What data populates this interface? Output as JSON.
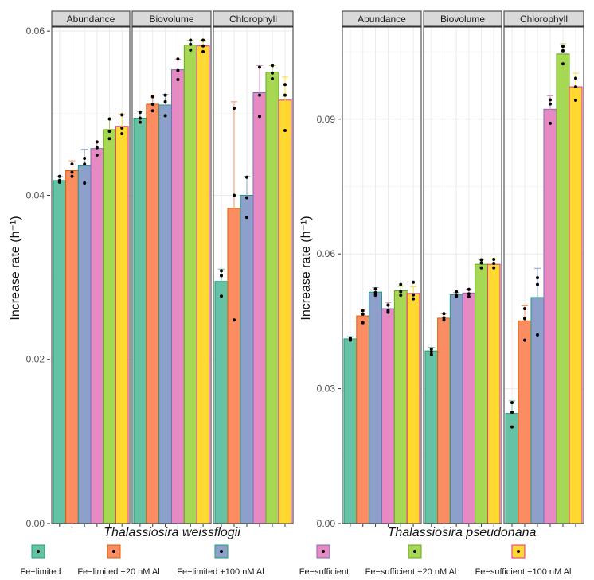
{
  "figure": {
    "legend": [
      {
        "label": "Fe−limited",
        "fill": "#66C2A5",
        "border": "#1B9E77"
      },
      {
        "label": "Fe−limited +20 nM Al",
        "fill": "#FC8D62",
        "border": "#D95F02"
      },
      {
        "label": "Fe−limited +100 nM Al",
        "fill": "#8DA0CB",
        "border": "#1B9E77"
      },
      {
        "label": "Fe−sufficient",
        "fill": "#E78AC3",
        "border": "#7570B3"
      },
      {
        "label": "Fe−sufficient +20 nM Al",
        "fill": "#A6D854",
        "border": "#66A61E"
      },
      {
        "label": "Fe−sufficient +100 nM Al",
        "fill": "#FFD92F",
        "border": "#E7298A"
      }
    ]
  },
  "chart_data": [
    {
      "type": "bar",
      "xlabel": "Thalassiosira weissflogii",
      "ylabel": "Increase rate (h⁻¹)",
      "ylim": [
        0,
        0.0605
      ],
      "yticks": [
        "0.00",
        "0.02",
        "0.04",
        "0.06"
      ],
      "ytick_values": [
        0,
        0.02,
        0.04,
        0.06
      ],
      "grid": true,
      "facets": [
        {
          "name": "Abundance",
          "values": [
            0.0418,
            0.043,
            0.0436,
            0.0457,
            0.048,
            0.0484
          ],
          "errors": [
            0.0005,
            0.0012,
            0.002,
            0.0008,
            0.0013,
            0.0015
          ],
          "points": [
            [
              0.0416,
              0.0418,
              0.0423
            ],
            [
              0.0423,
              0.0428,
              0.0438
            ],
            [
              0.0415,
              0.0438,
              0.0445
            ],
            [
              0.0449,
              0.0458,
              0.0465
            ],
            [
              0.0469,
              0.0478,
              0.0493
            ],
            [
              0.0475,
              0.0482,
              0.0498
            ]
          ]
        },
        {
          "name": "Biovolume",
          "values": [
            0.0494,
            0.0511,
            0.051,
            0.0553,
            0.0583,
            0.0582
          ],
          "errors": [
            0.0008,
            0.0011,
            0.0013,
            0.0013,
            0.0006,
            0.0007
          ],
          "points": [
            [
              0.0489,
              0.0494,
              0.0501
            ],
            [
              0.0503,
              0.0511,
              0.052
            ],
            [
              0.0497,
              0.0514,
              0.0522
            ],
            [
              0.0541,
              0.0552,
              0.0566
            ],
            [
              0.0577,
              0.0584,
              0.0589
            ],
            [
              0.0575,
              0.0582,
              0.0589
            ]
          ]
        },
        {
          "name": "Chlorophyll",
          "values": [
            0.0295,
            0.0384,
            0.04,
            0.0525,
            0.055,
            0.0516
          ],
          "errors": [
            0.0015,
            0.013,
            0.0023,
            0.0033,
            0.0008,
            0.0028
          ],
          "points": [
            [
              0.0277,
              0.0302,
              0.0308
            ],
            [
              0.0248,
              0.04,
              0.0506
            ],
            [
              0.0373,
              0.0397,
              0.0422
            ],
            [
              0.0496,
              0.0522,
              0.0556
            ],
            [
              0.0542,
              0.0549,
              0.0558
            ],
            [
              0.0479,
              0.0522,
              0.0535
            ]
          ]
        }
      ]
    },
    {
      "type": "bar",
      "xlabel": "Thalassiosira pseudonana",
      "ylabel": "Increase rate (h⁻¹)",
      "ylim": [
        0,
        0.1105
      ],
      "yticks": [
        "0.00",
        "0.03",
        "0.06",
        "0.09"
      ],
      "ytick_values": [
        0,
        0.03,
        0.06,
        0.09
      ],
      "grid": true,
      "facets": [
        {
          "name": "Abundance",
          "values": [
            0.0411,
            0.0462,
            0.0515,
            0.0478,
            0.0518,
            0.0512
          ],
          "errors": [
            0.0005,
            0.0015,
            0.001,
            0.0013,
            0.001,
            0.0015
          ],
          "points": [
            [
              0.0408,
              0.041,
              0.0413
            ],
            [
              0.0447,
              0.0466,
              0.0474
            ],
            [
              0.0508,
              0.0514,
              0.0522
            ],
            [
              0.047,
              0.0474,
              0.0486
            ],
            [
              0.0508,
              0.0516,
              0.0532
            ],
            [
              0.05,
              0.0509,
              0.0537
            ]
          ]
        },
        {
          "name": "Biovolume",
          "values": [
            0.0384,
            0.0457,
            0.0509,
            0.0513,
            0.0577,
            0.0577
          ],
          "errors": [
            0.0008,
            0.001,
            0.0005,
            0.0008,
            0.001,
            0.0012
          ],
          "points": [
            [
              0.0376,
              0.0382,
              0.0388
            ],
            [
              0.0453,
              0.0458,
              0.0467
            ],
            [
              0.0505,
              0.0507,
              0.0516
            ],
            [
              0.0505,
              0.0511,
              0.0521
            ],
            [
              0.0569,
              0.058,
              0.0587
            ],
            [
              0.0569,
              0.0579,
              0.0588
            ]
          ]
        },
        {
          "name": "Chlorophyll",
          "values": [
            0.0245,
            0.0451,
            0.0503,
            0.0922,
            0.1045,
            0.0972
          ],
          "errors": [
            0.0028,
            0.0035,
            0.0065,
            0.003,
            0.0023,
            0.003
          ],
          "points": [
            [
              0.0215,
              0.0248,
              0.0269
            ],
            [
              0.0408,
              0.0456,
              0.0478
            ],
            [
              0.042,
              0.0532,
              0.0547
            ],
            [
              0.0891,
              0.0934,
              0.0943
            ],
            [
              0.1023,
              0.1052,
              0.1062
            ],
            [
              0.0942,
              0.0972,
              0.0991
            ]
          ]
        }
      ]
    }
  ]
}
